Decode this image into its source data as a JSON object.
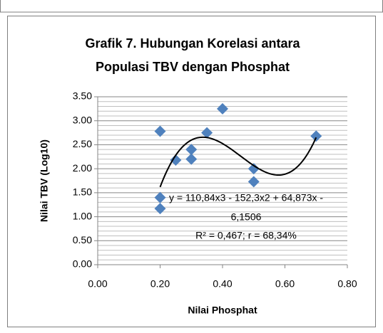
{
  "chart_data": {
    "type": "scatter",
    "title": [
      "Grafik 7. Hubungan Korelasi antara",
      "Populasi TBV dengan Phosphat"
    ],
    "x_label": "Nilai Phosphat",
    "y_label": "Nilai TBV (Log10)",
    "x": [
      0.2,
      0.2,
      0.2,
      0.25,
      0.3,
      0.3,
      0.35,
      0.4,
      0.5,
      0.5,
      0.7
    ],
    "values": [
      2.78,
      1.4,
      1.17,
      2.18,
      2.4,
      2.2,
      2.75,
      3.25,
      2.0,
      1.73,
      2.68
    ],
    "color": "#4f81bd",
    "xlim": [
      0,
      0.8
    ],
    "xticks": [
      {
        "value": 0,
        "label": "0.00"
      },
      {
        "value": 0.2,
        "label": "0.20"
      },
      {
        "value": 0.4,
        "label": "0.40"
      },
      {
        "value": 0.6,
        "label": "0.60"
      },
      {
        "value": 0.8,
        "label": "0.80"
      }
    ],
    "ylim": [
      0,
      3.5
    ],
    "yticks": [
      {
        "value": 0,
        "label": "0.00"
      },
      {
        "value": 0.5,
        "label": "0.50"
      },
      {
        "value": 1,
        "label": "1.00"
      },
      {
        "value": 1.5,
        "label": "1.50"
      },
      {
        "value": 2,
        "label": "2.00"
      },
      {
        "value": 2.5,
        "label": "2.50"
      },
      {
        "value": 3,
        "label": "3.00"
      },
      {
        "value": 3.5,
        "label": "3.50"
      }
    ],
    "grid": true,
    "minor_grid_divisions": 5,
    "trendline": {
      "type": "poly3",
      "coefficients": [
        110.84,
        -152.3,
        64.873,
        -6.1506
      ],
      "xrange": [
        0.2,
        0.7
      ],
      "color": "#000000"
    },
    "annotations": [
      "y = 110,84x3 - 152,3x2 + 64,873x -",
      "6,1506",
      "R² = 0,467; r = 68,34%"
    ]
  }
}
